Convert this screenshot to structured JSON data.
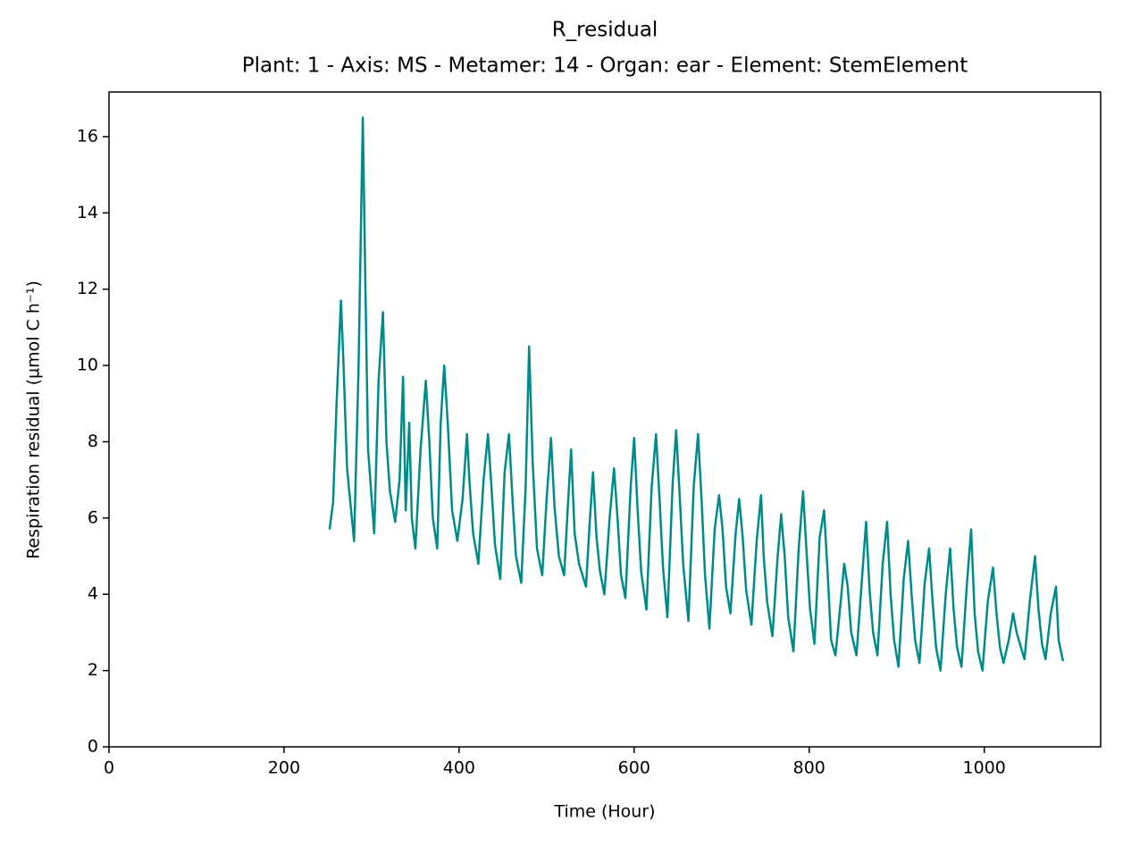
{
  "chart_data": {
    "type": "line",
    "title": "R_residual",
    "subtitle": "Plant: 1 - Axis: MS - Metamer: 14 - Organ: ear - Element: StemElement",
    "x_label": "Time (Hour)",
    "y_label": "Respiration residual (µmol C h⁻¹)",
    "xlim": [
      0,
      1133
    ],
    "ylim": [
      0,
      17.17
    ],
    "xticks": [
      0,
      200,
      400,
      600,
      800,
      1000
    ],
    "yticks": [
      0,
      2,
      4,
      6,
      8,
      10,
      12,
      14,
      16
    ],
    "grid": false,
    "x": [
      252,
      256,
      260,
      265,
      268,
      272,
      280,
      285,
      290,
      293,
      296,
      303,
      308,
      313,
      317,
      321,
      327,
      332,
      336,
      339,
      343,
      346,
      350,
      356,
      362,
      366,
      370,
      375,
      379,
      383,
      387,
      392,
      398,
      404,
      409,
      412,
      416,
      422,
      428,
      433,
      437,
      441,
      447,
      452,
      457,
      461,
      465,
      471,
      476,
      480,
      484,
      489,
      495,
      500,
      505,
      509,
      514,
      520,
      524,
      528,
      532,
      537,
      545,
      549,
      553,
      557,
      561,
      566,
      572,
      577,
      581,
      585,
      590,
      596,
      600,
      604,
      608,
      614,
      620,
      625,
      629,
      633,
      638,
      644,
      648,
      652,
      656,
      662,
      668,
      673,
      677,
      681,
      686,
      692,
      697,
      701,
      705,
      710,
      716,
      720,
      724,
      728,
      734,
      740,
      745,
      748,
      752,
      758,
      764,
      768,
      772,
      776,
      782,
      788,
      793,
      797,
      801,
      806,
      812,
      817,
      821,
      825,
      830,
      836,
      840,
      844,
      848,
      854,
      860,
      865,
      869,
      873,
      878,
      884,
      889,
      893,
      897,
      902,
      908,
      913,
      917,
      921,
      926,
      932,
      937,
      941,
      945,
      950,
      956,
      961,
      965,
      969,
      974,
      980,
      985,
      989,
      993,
      998,
      1004,
      1010,
      1014,
      1018,
      1022,
      1028,
      1033,
      1037,
      1042,
      1046,
      1052,
      1058,
      1062,
      1066,
      1070,
      1076,
      1082,
      1085,
      1090
    ],
    "series": [
      {
        "name": "R_residual",
        "color": "#008b8b",
        "values": [
          5.7,
          6.4,
          9.0,
          11.7,
          10.0,
          7.3,
          5.4,
          9.8,
          16.5,
          12.0,
          7.8,
          5.6,
          9.6,
          11.4,
          8.0,
          6.7,
          5.9,
          7.0,
          9.7,
          6.2,
          8.5,
          6.0,
          5.2,
          7.8,
          9.6,
          8.0,
          6.0,
          5.2,
          8.5,
          10.0,
          8.5,
          6.2,
          5.4,
          6.5,
          8.2,
          6.9,
          5.6,
          4.8,
          7.0,
          8.2,
          6.8,
          5.3,
          4.4,
          7.2,
          8.2,
          6.5,
          5.0,
          4.3,
          6.8,
          10.5,
          7.5,
          5.2,
          4.5,
          6.5,
          8.1,
          6.3,
          5.0,
          4.5,
          6.2,
          7.8,
          5.6,
          4.8,
          4.2,
          5.8,
          7.2,
          5.5,
          4.6,
          4.0,
          6.0,
          7.3,
          6.0,
          4.5,
          3.9,
          6.8,
          8.1,
          6.2,
          4.6,
          3.6,
          6.8,
          8.2,
          6.5,
          4.7,
          3.4,
          6.9,
          8.3,
          6.6,
          4.8,
          3.3,
          6.8,
          8.2,
          6.5,
          4.5,
          3.1,
          5.7,
          6.6,
          5.7,
          4.2,
          3.5,
          5.6,
          6.5,
          5.5,
          4.1,
          3.2,
          5.4,
          6.6,
          5.0,
          3.8,
          2.9,
          5.0,
          6.1,
          5.0,
          3.4,
          2.5,
          5.2,
          6.7,
          5.1,
          3.6,
          2.7,
          5.5,
          6.2,
          4.6,
          2.8,
          2.4,
          3.8,
          4.8,
          4.2,
          3.0,
          2.4,
          4.3,
          5.9,
          4.1,
          3.0,
          2.4,
          4.8,
          5.9,
          4.0,
          2.8,
          2.1,
          4.4,
          5.4,
          4.0,
          2.8,
          2.2,
          4.3,
          5.2,
          3.8,
          2.6,
          2.0,
          4.0,
          5.2,
          3.6,
          2.6,
          2.1,
          4.2,
          5.7,
          3.5,
          2.5,
          2.0,
          3.8,
          4.7,
          3.5,
          2.6,
          2.2,
          2.8,
          3.5,
          3.0,
          2.6,
          2.3,
          3.8,
          5.0,
          3.6,
          2.7,
          2.3,
          3.5,
          4.2,
          2.8,
          2.25
        ]
      }
    ]
  }
}
